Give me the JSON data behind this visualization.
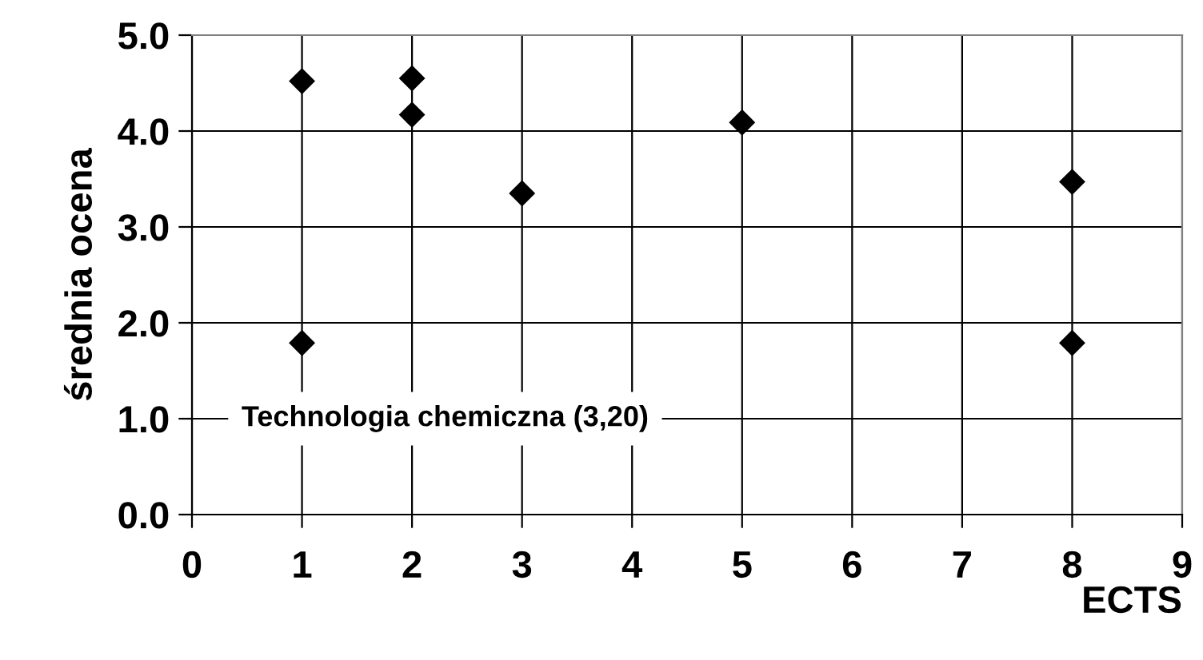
{
  "chart_data": {
    "type": "scatter",
    "xlabel": "ECTS",
    "ylabel": "średnia ocena",
    "x": [
      1,
      1,
      2,
      2,
      3,
      5,
      8,
      8
    ],
    "values": [
      4.52,
      1.79,
      4.55,
      4.17,
      3.35,
      4.09,
      3.47,
      1.79
    ],
    "color": "#000000",
    "marker": "diamond",
    "xlim": [
      0,
      9
    ],
    "xticks": [
      0,
      1,
      2,
      3,
      4,
      5,
      6,
      7,
      8,
      9
    ],
    "ylim": [
      0,
      5
    ],
    "yticks": [
      {
        "value": 0,
        "label": "0.0"
      },
      {
        "value": 1,
        "label": "1.0"
      },
      {
        "value": 2,
        "label": "2.0"
      },
      {
        "value": 3,
        "label": "3.0"
      },
      {
        "value": 4,
        "label": "4.0"
      },
      {
        "value": 5,
        "label": "5.0"
      }
    ],
    "grid": true,
    "annotations": [
      "Technologia chemiczna (3,20)"
    ]
  }
}
